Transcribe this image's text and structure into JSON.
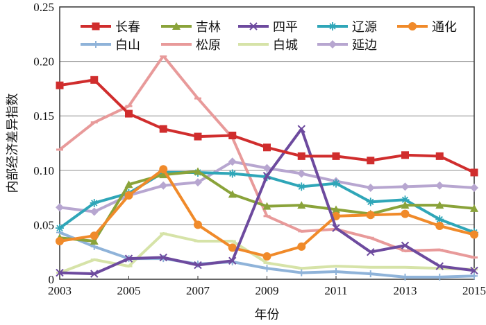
{
  "chart_data": {
    "type": "line",
    "title": "",
    "xlabel": "年份",
    "ylabel": "内部经济差异指数",
    "x": [
      2003,
      2004,
      2005,
      2006,
      2007,
      2008,
      2009,
      2010,
      2011,
      2012,
      2013,
      2014,
      2015
    ],
    "xticks": [
      "2003",
      "2005",
      "2007",
      "2009",
      "2011",
      "2013",
      "2015"
    ],
    "xlim": [
      2003,
      2015
    ],
    "ylim": [
      0,
      0.25
    ],
    "yticks": [
      "0",
      "0.05",
      "0.10",
      "0.15",
      "0.20",
      "0.25"
    ],
    "grid": "horizontal",
    "legend_position": "top",
    "series": [
      {
        "name": "长春",
        "color": "#d02d2d",
        "marker": "square",
        "values": [
          0.178,
          0.183,
          0.152,
          0.138,
          0.131,
          0.132,
          0.121,
          0.113,
          0.113,
          0.109,
          0.114,
          0.113,
          0.098
        ]
      },
      {
        "name": "吉林",
        "color": "#8aa33a",
        "marker": "triangle",
        "values": [
          0.038,
          0.035,
          0.087,
          0.096,
          0.099,
          0.078,
          0.067,
          0.068,
          0.064,
          0.06,
          0.068,
          0.068,
          0.065
        ]
      },
      {
        "name": "四平",
        "color": "#6d4a9e",
        "marker": "x",
        "values": [
          0.006,
          0.005,
          0.019,
          0.02,
          0.013,
          0.017,
          0.095,
          0.138,
          0.047,
          0.025,
          0.031,
          0.012,
          0.008
        ]
      },
      {
        "name": "辽源",
        "color": "#2fa6b8",
        "marker": "star",
        "values": [
          0.047,
          0.07,
          0.079,
          0.098,
          0.098,
          0.097,
          0.094,
          0.085,
          0.088,
          0.071,
          0.073,
          0.055,
          0.043
        ]
      },
      {
        "name": "通化",
        "color": "#f08a2a",
        "marker": "circle",
        "values": [
          0.035,
          0.04,
          0.077,
          0.101,
          0.05,
          0.029,
          0.021,
          0.03,
          0.058,
          0.059,
          0.06,
          0.049,
          0.041
        ]
      },
      {
        "name": "白山",
        "color": "#8fb3d9",
        "marker": "plus",
        "values": [
          0.043,
          0.03,
          0.019,
          0.019,
          0.014,
          0.016,
          0.01,
          0.006,
          0.007,
          0.005,
          0.002,
          0.002,
          0.003
        ]
      },
      {
        "name": "松原",
        "color": "#e89a9a",
        "marker": "dash",
        "values": [
          0.119,
          0.144,
          0.159,
          0.205,
          0.166,
          0.13,
          0.058,
          0.044,
          0.046,
          0.038,
          0.026,
          0.027,
          0.02
        ]
      },
      {
        "name": "白城",
        "color": "#d6e3a8",
        "marker": "dash",
        "values": [
          0.006,
          0.018,
          0.012,
          0.042,
          0.035,
          0.035,
          0.015,
          0.01,
          0.012,
          0.011,
          0.011,
          0.01,
          0.009
        ]
      },
      {
        "name": "延边",
        "color": "#b7a6d0",
        "marker": "diamond",
        "values": [
          0.066,
          0.062,
          0.077,
          0.086,
          0.089,
          0.108,
          0.102,
          0.097,
          0.09,
          0.084,
          0.085,
          0.086,
          0.084
        ]
      }
    ]
  }
}
